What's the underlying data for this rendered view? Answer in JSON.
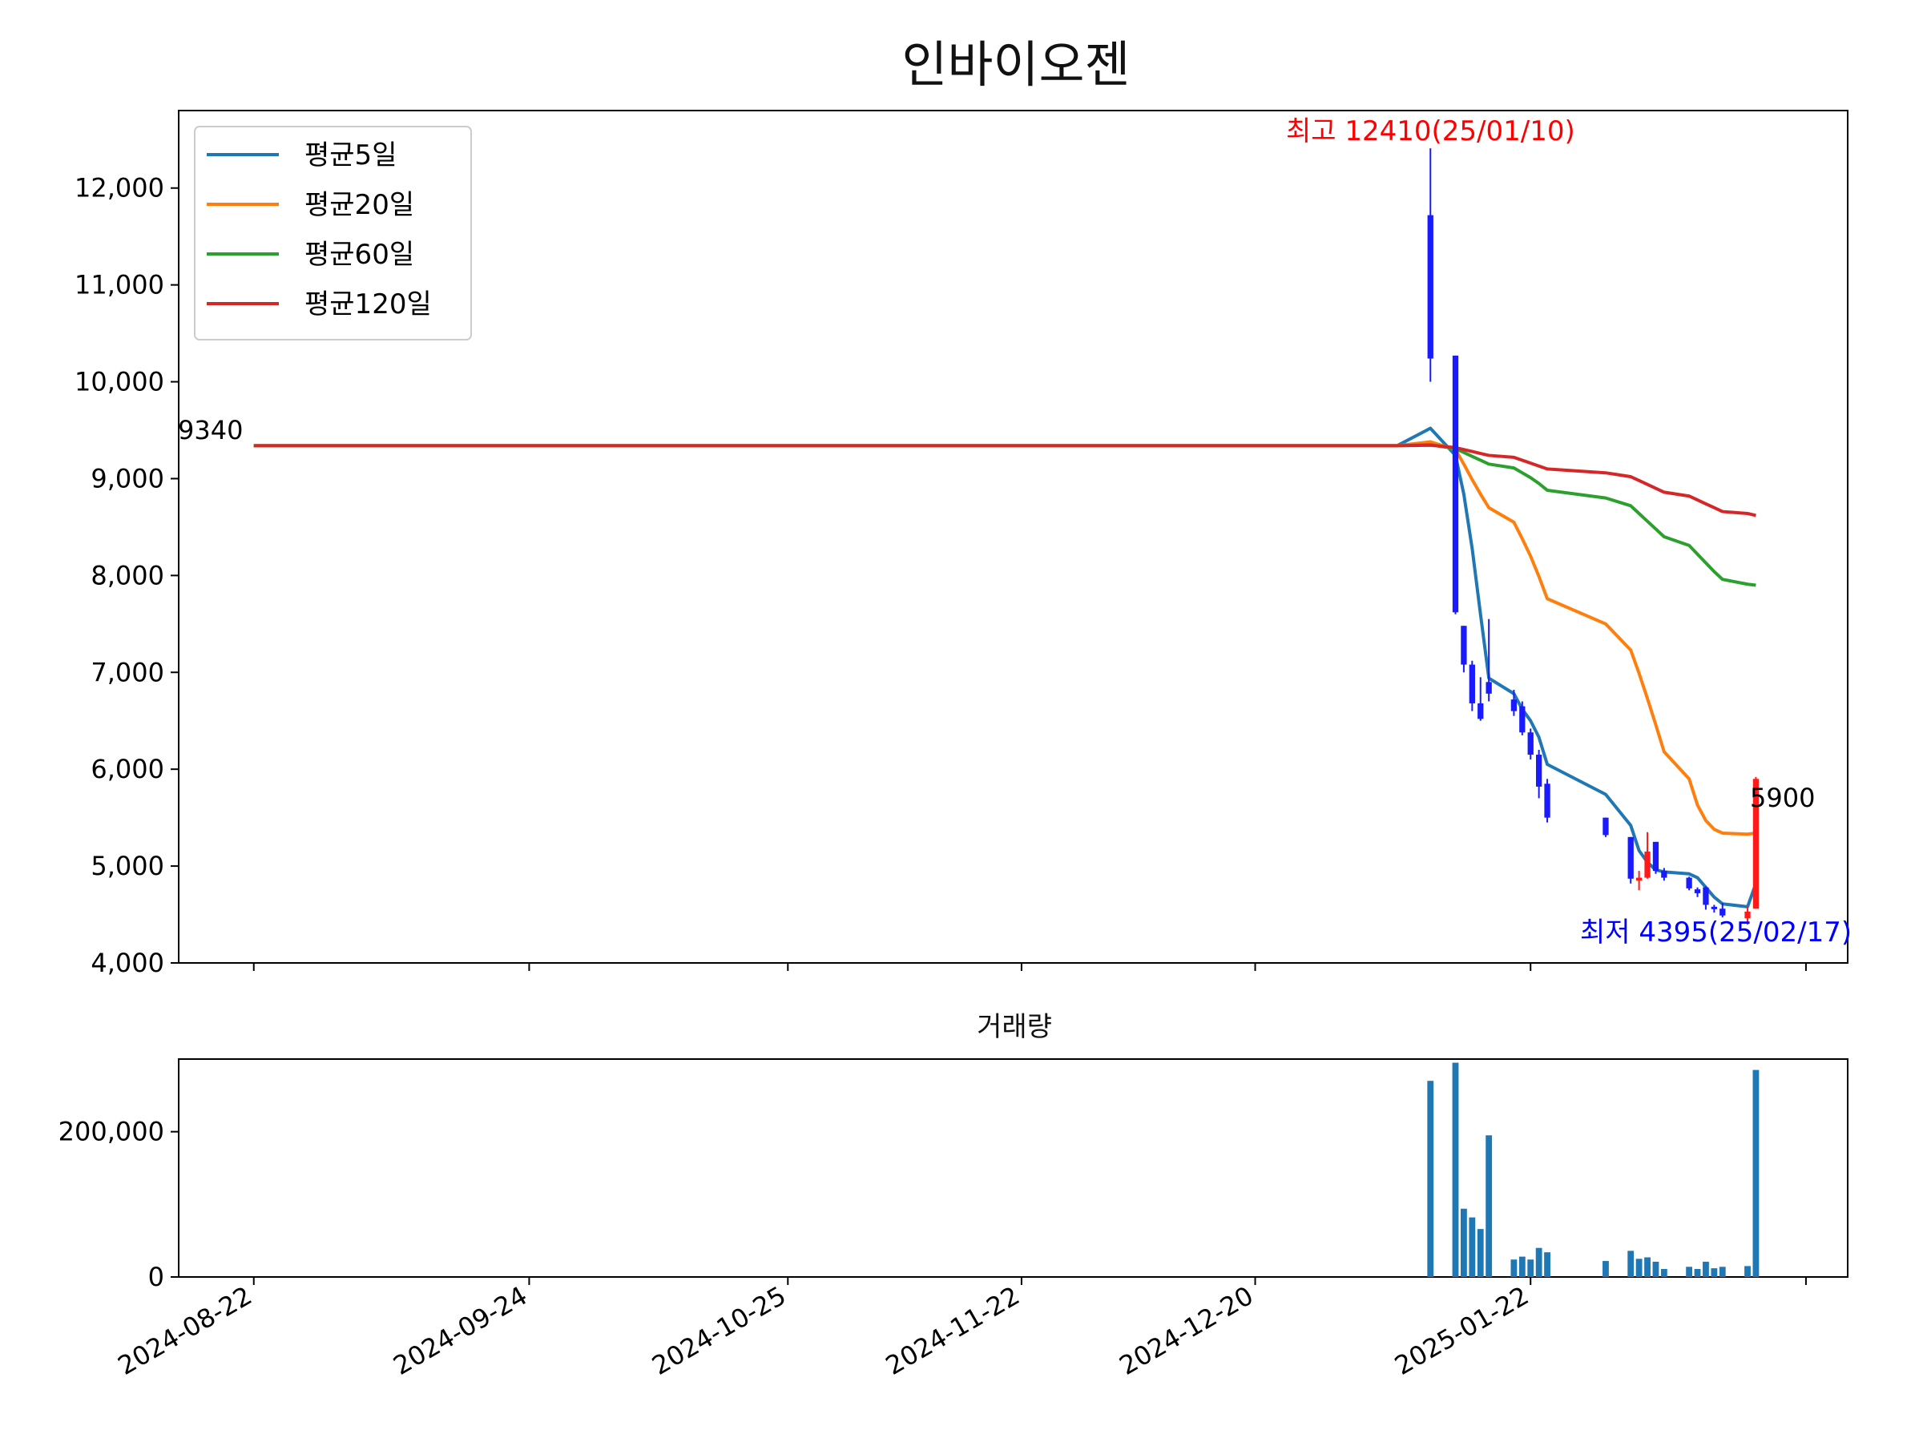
{
  "chart_data": [
    {
      "type": "candlestick",
      "title": "인바이오젠",
      "ylim": [
        4000,
        12800
      ],
      "yticks": [
        4000,
        5000,
        6000,
        7000,
        8000,
        9000,
        10000,
        11000,
        12000
      ],
      "ytick_labels": [
        "4,000",
        "5,000",
        "6,000",
        "7,000",
        "8,000",
        "9,000",
        "10,000",
        "11,000",
        "12,000"
      ],
      "legend_position": "top-left",
      "legend": [
        {
          "label": "평균5일",
          "color": "#1f77b4"
        },
        {
          "label": "평균20일",
          "color": "#ff7f0e"
        },
        {
          "label": "평균60일",
          "color": "#2ca02c"
        },
        {
          "label": "평균120일",
          "color": "#d62728"
        }
      ],
      "annotations": {
        "start_price": "9340",
        "last_price": "5900",
        "high": "최고 12410(25/01/10)",
        "low": "최저 4395(25/02/17)"
      },
      "colors": {
        "up": "#ff1a1a",
        "down": "#1a1aff",
        "high_text": "#ff0000",
        "low_text": "#0000ff"
      },
      "flat_value": 9340,
      "candles": [
        {
          "date": "2025-01-10",
          "open": 11720,
          "high": 12410,
          "low": 10000,
          "close": 10240
        },
        {
          "date": "2025-01-13",
          "open": 10270,
          "high": 10270,
          "low": 7600,
          "close": 7620
        },
        {
          "date": "2025-01-14",
          "open": 7480,
          "high": 7480,
          "low": 7000,
          "close": 7080
        },
        {
          "date": "2025-01-15",
          "open": 7080,
          "high": 7120,
          "low": 6600,
          "close": 6680
        },
        {
          "date": "2025-01-16",
          "open": 6680,
          "high": 6950,
          "low": 6500,
          "close": 6520
        },
        {
          "date": "2025-01-17",
          "open": 6900,
          "high": 7550,
          "low": 6700,
          "close": 6780
        },
        {
          "date": "2025-01-20",
          "open": 6720,
          "high": 6820,
          "low": 6550,
          "close": 6600
        },
        {
          "date": "2025-01-21",
          "open": 6650,
          "high": 6700,
          "low": 6350,
          "close": 6380
        },
        {
          "date": "2025-01-22",
          "open": 6380,
          "high": 6420,
          "low": 6100,
          "close": 6150
        },
        {
          "date": "2025-01-23",
          "open": 6150,
          "high": 6200,
          "low": 5700,
          "close": 5820
        },
        {
          "date": "2025-01-24",
          "open": 5850,
          "high": 5900,
          "low": 5450,
          "close": 5500
        },
        {
          "date": "2025-01-31",
          "open": 5500,
          "high": 5500,
          "low": 5300,
          "close": 5320
        },
        {
          "date": "2025-02-03",
          "open": 5300,
          "high": 5300,
          "low": 4820,
          "close": 4870
        },
        {
          "date": "2025-02-04",
          "open": 4850,
          "high": 4950,
          "low": 4750,
          "close": 4880
        },
        {
          "date": "2025-02-05",
          "open": 4880,
          "high": 5350,
          "low": 4870,
          "close": 5150
        },
        {
          "date": "2025-02-06",
          "open": 5250,
          "high": 5250,
          "low": 4920,
          "close": 4950
        },
        {
          "date": "2025-02-07",
          "open": 4950,
          "high": 4980,
          "low": 4850,
          "close": 4880
        },
        {
          "date": "2025-02-10",
          "open": 4880,
          "high": 4890,
          "low": 4750,
          "close": 4770
        },
        {
          "date": "2025-02-11",
          "open": 4760,
          "high": 4780,
          "low": 4680,
          "close": 4720
        },
        {
          "date": "2025-02-12",
          "open": 4780,
          "high": 4790,
          "low": 4550,
          "close": 4600
        },
        {
          "date": "2025-02-13",
          "open": 4580,
          "high": 4600,
          "low": 4520,
          "close": 4560
        },
        {
          "date": "2025-02-14",
          "open": 4560,
          "high": 4620,
          "low": 4470,
          "close": 4490
        },
        {
          "date": "2025-02-17",
          "open": 4460,
          "high": 4580,
          "low": 4395,
          "close": 4530
        },
        {
          "date": "2025-02-18",
          "open": 4560,
          "high": 5920,
          "low": 4560,
          "close": 5900
        }
      ],
      "ma5": [
        {
          "date": "2025-01-06",
          "value": 9340
        },
        {
          "date": "2025-01-10",
          "value": 9520
        },
        {
          "date": "2025-01-13",
          "value": 9240
        },
        {
          "date": "2025-01-14",
          "value": 8840
        },
        {
          "date": "2025-01-15",
          "value": 8280
        },
        {
          "date": "2025-01-16",
          "value": 7600
        },
        {
          "date": "2025-01-17",
          "value": 6940
        },
        {
          "date": "2025-01-20",
          "value": 6780
        },
        {
          "date": "2025-01-21",
          "value": 6620
        },
        {
          "date": "2025-01-22",
          "value": 6500
        },
        {
          "date": "2025-01-23",
          "value": 6330
        },
        {
          "date": "2025-01-24",
          "value": 6050
        },
        {
          "date": "2025-01-31",
          "value": 5740
        },
        {
          "date": "2025-02-03",
          "value": 5420
        },
        {
          "date": "2025-02-04",
          "value": 5160
        },
        {
          "date": "2025-02-05",
          "value": 5040
        },
        {
          "date": "2025-02-06",
          "value": 4960
        },
        {
          "date": "2025-02-07",
          "value": 4940
        },
        {
          "date": "2025-02-10",
          "value": 4920
        },
        {
          "date": "2025-02-11",
          "value": 4880
        },
        {
          "date": "2025-02-12",
          "value": 4780
        },
        {
          "date": "2025-02-13",
          "value": 4680
        },
        {
          "date": "2025-02-14",
          "value": 4610
        },
        {
          "date": "2025-02-17",
          "value": 4580
        },
        {
          "date": "2025-02-18",
          "value": 4820
        }
      ],
      "ma20": [
        {
          "date": "2025-01-06",
          "value": 9340
        },
        {
          "date": "2025-01-10",
          "value": 9380
        },
        {
          "date": "2025-01-13",
          "value": 9300
        },
        {
          "date": "2025-01-14",
          "value": 9150
        },
        {
          "date": "2025-01-15",
          "value": 8990
        },
        {
          "date": "2025-01-16",
          "value": 8840
        },
        {
          "date": "2025-01-17",
          "value": 8700
        },
        {
          "date": "2025-01-20",
          "value": 8550
        },
        {
          "date": "2025-01-21",
          "value": 8380
        },
        {
          "date": "2025-01-22",
          "value": 8200
        },
        {
          "date": "2025-01-23",
          "value": 7990
        },
        {
          "date": "2025-01-24",
          "value": 7760
        },
        {
          "date": "2025-01-31",
          "value": 7500
        },
        {
          "date": "2025-02-03",
          "value": 7230
        },
        {
          "date": "2025-02-04",
          "value": 6990
        },
        {
          "date": "2025-02-05",
          "value": 6730
        },
        {
          "date": "2025-02-06",
          "value": 6460
        },
        {
          "date": "2025-02-07",
          "value": 6180
        },
        {
          "date": "2025-02-10",
          "value": 5900
        },
        {
          "date": "2025-02-11",
          "value": 5630
        },
        {
          "date": "2025-02-12",
          "value": 5470
        },
        {
          "date": "2025-02-13",
          "value": 5380
        },
        {
          "date": "2025-02-14",
          "value": 5340
        },
        {
          "date": "2025-02-17",
          "value": 5330
        },
        {
          "date": "2025-02-18",
          "value": 5340
        }
      ],
      "ma60": [
        {
          "date": "2025-01-06",
          "value": 9340
        },
        {
          "date": "2025-01-10",
          "value": 9350
        },
        {
          "date": "2025-01-13",
          "value": 9310
        },
        {
          "date": "2025-01-14",
          "value": 9270
        },
        {
          "date": "2025-01-15",
          "value": 9230
        },
        {
          "date": "2025-01-16",
          "value": 9190
        },
        {
          "date": "2025-01-17",
          "value": 9150
        },
        {
          "date": "2025-01-20",
          "value": 9110
        },
        {
          "date": "2025-01-21",
          "value": 9060
        },
        {
          "date": "2025-01-22",
          "value": 9010
        },
        {
          "date": "2025-01-23",
          "value": 8950
        },
        {
          "date": "2025-01-24",
          "value": 8880
        },
        {
          "date": "2025-01-31",
          "value": 8800
        },
        {
          "date": "2025-02-03",
          "value": 8720
        },
        {
          "date": "2025-02-04",
          "value": 8640
        },
        {
          "date": "2025-02-05",
          "value": 8560
        },
        {
          "date": "2025-02-06",
          "value": 8480
        },
        {
          "date": "2025-02-07",
          "value": 8400
        },
        {
          "date": "2025-02-10",
          "value": 8310
        },
        {
          "date": "2025-02-11",
          "value": 8220
        },
        {
          "date": "2025-02-12",
          "value": 8130
        },
        {
          "date": "2025-02-13",
          "value": 8040
        },
        {
          "date": "2025-02-14",
          "value": 7960
        },
        {
          "date": "2025-02-17",
          "value": 7910
        },
        {
          "date": "2025-02-18",
          "value": 7900
        }
      ],
      "ma120": [
        {
          "date": "2025-01-06",
          "value": 9340
        },
        {
          "date": "2025-01-10",
          "value": 9345
        },
        {
          "date": "2025-01-13",
          "value": 9320
        },
        {
          "date": "2025-01-14",
          "value": 9300
        },
        {
          "date": "2025-01-15",
          "value": 9280
        },
        {
          "date": "2025-01-16",
          "value": 9260
        },
        {
          "date": "2025-01-17",
          "value": 9240
        },
        {
          "date": "2025-01-20",
          "value": 9220
        },
        {
          "date": "2025-01-21",
          "value": 9190
        },
        {
          "date": "2025-01-22",
          "value": 9160
        },
        {
          "date": "2025-01-23",
          "value": 9130
        },
        {
          "date": "2025-01-24",
          "value": 9100
        },
        {
          "date": "2025-01-31",
          "value": 9060
        },
        {
          "date": "2025-02-03",
          "value": 9020
        },
        {
          "date": "2025-02-04",
          "value": 8980
        },
        {
          "date": "2025-02-05",
          "value": 8940
        },
        {
          "date": "2025-02-06",
          "value": 8900
        },
        {
          "date": "2025-02-07",
          "value": 8860
        },
        {
          "date": "2025-02-10",
          "value": 8820
        },
        {
          "date": "2025-02-11",
          "value": 8780
        },
        {
          "date": "2025-02-12",
          "value": 8740
        },
        {
          "date": "2025-02-13",
          "value": 8700
        },
        {
          "date": "2025-02-14",
          "value": 8660
        },
        {
          "date": "2025-02-17",
          "value": 8640
        },
        {
          "date": "2025-02-18",
          "value": 8620
        }
      ]
    },
    {
      "type": "bar",
      "title": "거래량",
      "ylim": [
        0,
        300000
      ],
      "yticks": [
        0,
        200000
      ],
      "ytick_labels": [
        "0",
        "200,000"
      ],
      "bar_color": "#1f77b4",
      "bars": [
        {
          "date": "2025-01-10",
          "value": 270000
        },
        {
          "date": "2025-01-13",
          "value": 295000
        },
        {
          "date": "2025-01-14",
          "value": 94000
        },
        {
          "date": "2025-01-15",
          "value": 82000
        },
        {
          "date": "2025-01-16",
          "value": 66000
        },
        {
          "date": "2025-01-17",
          "value": 195000
        },
        {
          "date": "2025-01-20",
          "value": 24000
        },
        {
          "date": "2025-01-21",
          "value": 28000
        },
        {
          "date": "2025-01-22",
          "value": 24000
        },
        {
          "date": "2025-01-23",
          "value": 40000
        },
        {
          "date": "2025-01-24",
          "value": 34000
        },
        {
          "date": "2025-01-31",
          "value": 22000
        },
        {
          "date": "2025-02-03",
          "value": 36000
        },
        {
          "date": "2025-02-04",
          "value": 25000
        },
        {
          "date": "2025-02-05",
          "value": 27000
        },
        {
          "date": "2025-02-06",
          "value": 21000
        },
        {
          "date": "2025-02-07",
          "value": 11000
        },
        {
          "date": "2025-02-10",
          "value": 14000
        },
        {
          "date": "2025-02-11",
          "value": 11000
        },
        {
          "date": "2025-02-12",
          "value": 21000
        },
        {
          "date": "2025-02-13",
          "value": 12000
        },
        {
          "date": "2025-02-14",
          "value": 14000
        },
        {
          "date": "2025-02-17",
          "value": 15000
        },
        {
          "date": "2025-02-18",
          "value": 285000
        }
      ]
    }
  ],
  "x_axis": {
    "type": "date",
    "range": [
      "2024-08-13",
      "2025-03-01"
    ],
    "tick_dates": [
      "2024-08-22",
      "2024-09-24",
      "2024-10-25",
      "2024-11-22",
      "2024-12-20",
      "2025-01-22",
      "2025-02-24"
    ],
    "tick_labels": [
      "2024-08-22",
      "2024-09-24",
      "2024-10-25",
      "2024-11-22",
      "2024-12-20",
      "2025-01-22",
      ""
    ]
  }
}
